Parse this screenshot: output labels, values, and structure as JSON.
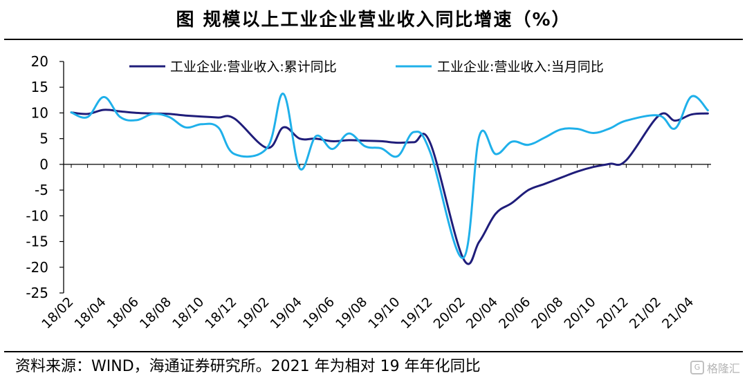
{
  "title": "图  规模以上工业企业营业收入同比增速（%）",
  "source": "资料来源：WIND，海通证券研究所。2021 年为相对 19 年年化同比",
  "watermark": {
    "icon": "G",
    "text": "格隆汇"
  },
  "colors": {
    "series_1": "#1f1d7a",
    "series_2": "#1fb0ea",
    "axis": "#000000"
  },
  "chart_data": {
    "type": "line",
    "title": "",
    "xlabel": "",
    "ylabel": "",
    "ylim": [
      -25,
      20
    ],
    "yticks": [
      20,
      15,
      10,
      5,
      0,
      -5,
      -10,
      -15,
      -20,
      -25
    ],
    "x": [
      "18/02",
      "18/03",
      "18/04",
      "18/05",
      "18/06",
      "18/07",
      "18/08",
      "18/09",
      "18/10",
      "18/11",
      "18/12",
      "19/01",
      "19/02",
      "19/03",
      "19/04",
      "19/05",
      "19/06",
      "19/07",
      "19/08",
      "19/09",
      "19/10",
      "19/11",
      "19/12",
      "20/01",
      "20/02",
      "20/03",
      "20/04",
      "20/05",
      "20/06",
      "20/07",
      "20/08",
      "20/09",
      "20/10",
      "20/11",
      "20/12",
      "21/01",
      "21/02",
      "21/03",
      "21/04",
      "21/05"
    ],
    "x_tick_labels": [
      "18/02",
      "18/04",
      "18/06",
      "18/08",
      "18/10",
      "18/12",
      "19/02",
      "19/04",
      "19/06",
      "19/08",
      "19/10",
      "19/12",
      "20/02",
      "20/04",
      "20/06",
      "20/08",
      "20/10",
      "20/12",
      "21/02",
      "21/04"
    ],
    "legend_position": "top",
    "grid": false,
    "series": [
      {
        "name": "工业企业:营业收入:累计同比",
        "values": [
          10.1,
          9.8,
          10.6,
          10.3,
          10.0,
          9.9,
          9.8,
          9.5,
          9.3,
          9.1,
          8.9,
          null,
          3.2,
          7.2,
          5.0,
          5.0,
          4.5,
          4.7,
          4.6,
          4.5,
          4.2,
          4.3,
          4.1,
          null,
          -18.2,
          -15.0,
          -9.6,
          -7.5,
          -5.0,
          -3.8,
          -2.6,
          -1.4,
          -0.5,
          0.1,
          0.8,
          null,
          9.5,
          8.5,
          9.7,
          9.9
        ]
      },
      {
        "name": "工业企业:营业收入:当月同比",
        "values": [
          10.1,
          9.2,
          13.1,
          9.2,
          8.6,
          9.8,
          9.2,
          7.2,
          7.8,
          7.2,
          2.0,
          null,
          3.2,
          13.7,
          -0.8,
          5.5,
          3.0,
          6.0,
          3.5,
          3.1,
          1.6,
          6.3,
          2.3,
          null,
          -18.2,
          5.5,
          2.0,
          4.4,
          3.8,
          5.2,
          6.8,
          6.9,
          6.1,
          7.0,
          8.5,
          null,
          9.5,
          7.0,
          13.2,
          10.5
        ]
      }
    ]
  }
}
